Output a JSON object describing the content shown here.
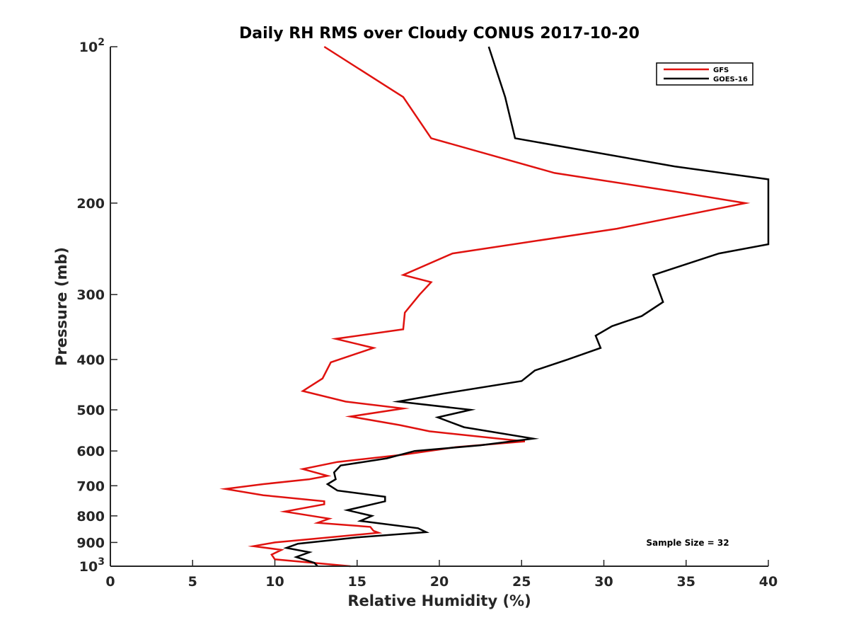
{
  "chart_data": {
    "type": "line",
    "title": "Daily RH RMS over Cloudy CONUS 2017-10-20",
    "xlabel": "Relative Humidity (%)",
    "ylabel": "Pressure (mb)",
    "xlim": [
      0,
      40
    ],
    "ylim": [
      100,
      1000
    ],
    "yscale": "log",
    "yreverse": true,
    "xticks": [
      0,
      5,
      10,
      15,
      20,
      25,
      30,
      35,
      40
    ],
    "xtick_labels": [
      "0",
      "5",
      "10",
      "15",
      "20",
      "25",
      "30",
      "35",
      "40"
    ],
    "yticks": [
      {
        "value": 100,
        "base": "10",
        "exp": "2"
      },
      {
        "value": 200,
        "base": "200",
        "exp": ""
      },
      {
        "value": 300,
        "base": "300",
        "exp": ""
      },
      {
        "value": 400,
        "base": "400",
        "exp": ""
      },
      {
        "value": 500,
        "base": "500",
        "exp": ""
      },
      {
        "value": 600,
        "base": "600",
        "exp": ""
      },
      {
        "value": 700,
        "base": "700",
        "exp": ""
      },
      {
        "value": 800,
        "base": "800",
        "exp": ""
      },
      {
        "value": 900,
        "base": "900",
        "exp": ""
      },
      {
        "value": 1000,
        "base": "10",
        "exp": "3"
      }
    ],
    "legend_position": "top-right",
    "annotation": "Sample Size = 32",
    "series": [
      {
        "name": "GFS",
        "color": "#e0120f",
        "points": [
          [
            13.0,
            100
          ],
          [
            17.8,
            125
          ],
          [
            19.5,
            150
          ],
          [
            27.0,
            175
          ],
          [
            34.3,
            190
          ],
          [
            38.6,
            200
          ],
          [
            30.8,
            224
          ],
          [
            20.8,
            250
          ],
          [
            17.8,
            275
          ],
          [
            19.5,
            284
          ],
          [
            18.8,
            300
          ],
          [
            17.9,
            325
          ],
          [
            17.8,
            350
          ],
          [
            13.7,
            365
          ],
          [
            16.0,
            380
          ],
          [
            13.4,
            405
          ],
          [
            12.9,
            435
          ],
          [
            11.7,
            460
          ],
          [
            14.3,
            482
          ],
          [
            17.8,
            497
          ],
          [
            14.6,
            515
          ],
          [
            17.6,
            535
          ],
          [
            19.4,
            550
          ],
          [
            25.2,
            575
          ],
          [
            21.0,
            590
          ],
          [
            17.8,
            610
          ],
          [
            13.8,
            630
          ],
          [
            11.7,
            650
          ],
          [
            13.2,
            670
          ],
          [
            12.1,
            680
          ],
          [
            9.3,
            695
          ],
          [
            7.0,
            710
          ],
          [
            9.3,
            730
          ],
          [
            13.0,
            750
          ],
          [
            13.0,
            760
          ],
          [
            10.6,
            785
          ],
          [
            13.3,
            810
          ],
          [
            12.6,
            825
          ],
          [
            15.8,
            840
          ],
          [
            16.0,
            855
          ],
          [
            16.3,
            862
          ],
          [
            13.3,
            880
          ],
          [
            10.0,
            900
          ],
          [
            8.7,
            915
          ],
          [
            10.4,
            930
          ],
          [
            9.8,
            950
          ],
          [
            10.0,
            970
          ],
          [
            14.6,
            1000
          ]
        ]
      },
      {
        "name": "GOES-16",
        "color": "#000000",
        "points": [
          [
            23.0,
            100
          ],
          [
            24.0,
            125
          ],
          [
            24.6,
            150
          ],
          [
            34.3,
            170
          ],
          [
            40.0,
            180
          ],
          [
            40.0,
            240
          ],
          [
            37.0,
            250
          ],
          [
            33.0,
            275
          ],
          [
            33.6,
            310
          ],
          [
            32.3,
            330
          ],
          [
            30.5,
            345
          ],
          [
            29.5,
            360
          ],
          [
            29.8,
            380
          ],
          [
            27.8,
            400
          ],
          [
            25.8,
            420
          ],
          [
            25.0,
            440
          ],
          [
            20.3,
            465
          ],
          [
            17.5,
            482
          ],
          [
            21.9,
            500
          ],
          [
            19.9,
            517
          ],
          [
            21.5,
            540
          ],
          [
            25.7,
            568
          ],
          [
            22.5,
            585
          ],
          [
            18.5,
            600
          ],
          [
            16.8,
            620
          ],
          [
            14.0,
            640
          ],
          [
            13.6,
            660
          ],
          [
            13.7,
            680
          ],
          [
            13.2,
            695
          ],
          [
            13.8,
            715
          ],
          [
            16.7,
            735
          ],
          [
            16.7,
            750
          ],
          [
            14.4,
            780
          ],
          [
            15.9,
            800
          ],
          [
            15.2,
            818
          ],
          [
            18.7,
            845
          ],
          [
            19.2,
            860
          ],
          [
            15.0,
            880
          ],
          [
            11.4,
            905
          ],
          [
            10.7,
            922
          ],
          [
            12.1,
            940
          ],
          [
            11.3,
            960
          ],
          [
            12.4,
            985
          ],
          [
            12.6,
            1000
          ]
        ]
      }
    ]
  }
}
